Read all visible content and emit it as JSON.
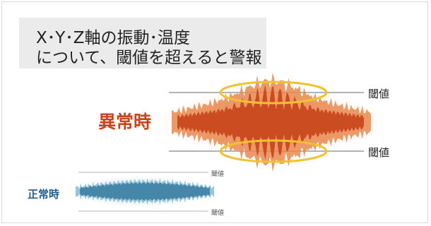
{
  "title": {
    "line1": "X･Y･Z軸の振動･温度",
    "line2": "について、閾値を超えると警報"
  },
  "abnormal": {
    "label": "異常時",
    "threshold_upper": "閾値",
    "threshold_lower": "閾値",
    "color": "#c9441b"
  },
  "normal": {
    "label": "正常時",
    "threshold_upper": "閾値",
    "threshold_lower": "閾値",
    "color": "#1f5d8a"
  },
  "highlight_color": "#f2c12e"
}
